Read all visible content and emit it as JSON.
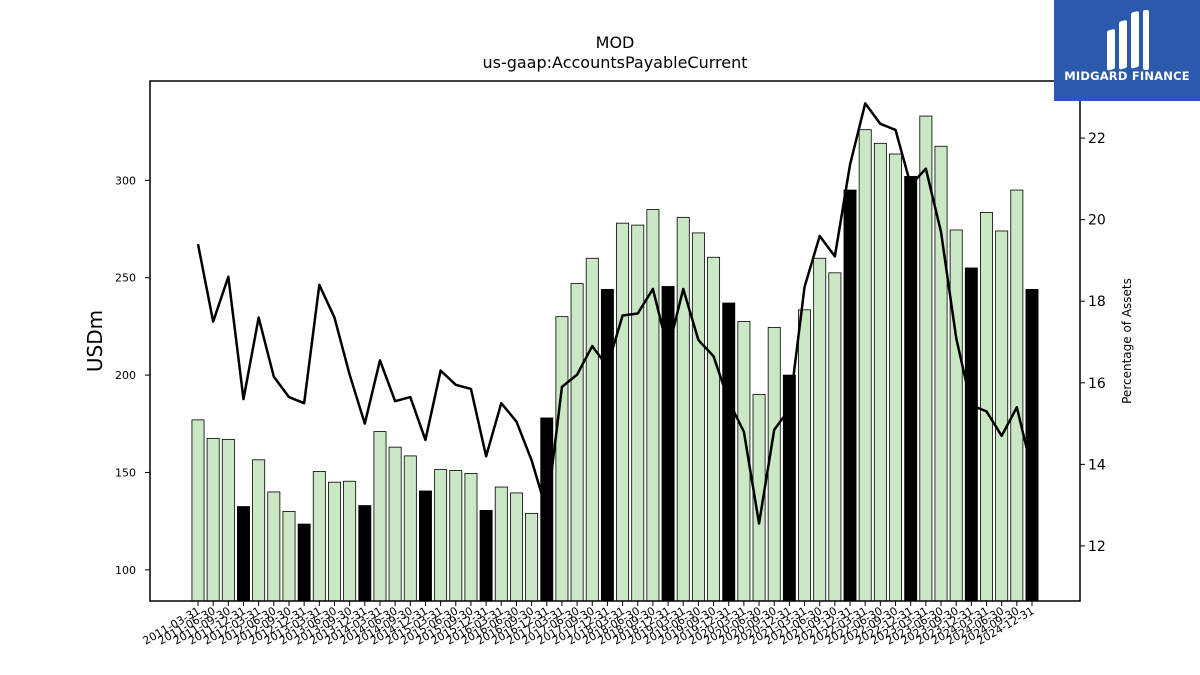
{
  "chart_data": {
    "type": "bar",
    "title": "MOD",
    "subtitle": "us-gaap:AccountsPayableCurrent",
    "ylabel": "USDm",
    "y2label": "Percentage of Assets",
    "ylim": [
      84,
      351
    ],
    "y2lim": [
      10.65,
      23.4
    ],
    "yticks": [
      100,
      150,
      200,
      250,
      300
    ],
    "y2ticks": [
      12,
      14,
      16,
      18,
      20,
      22
    ],
    "colors": {
      "bar": "#c9e8c3",
      "bar_highlight": "#000000",
      "edge": "#000000",
      "line": "#000000"
    },
    "categories": [
      "2011-03-31",
      "2011-06-30",
      "2011-09-30",
      "2011-12-31",
      "2012-03-31",
      "2012-06-30",
      "2012-09-30",
      "2012-12-31",
      "2013-03-31",
      "2013-06-30",
      "2013-09-30",
      "2013-12-31",
      "2014-03-31",
      "2014-06-30",
      "2014-09-30",
      "2014-12-31",
      "2015-03-31",
      "2015-06-30",
      "2015-09-30",
      "2015-12-31",
      "2016-03-31",
      "2016-06-30",
      "2016-09-30",
      "2016-12-31",
      "2017-03-31",
      "2017-06-30",
      "2017-09-30",
      "2017-12-31",
      "2018-03-31",
      "2018-06-30",
      "2018-09-30",
      "2018-12-31",
      "2019-03-31",
      "2019-06-30",
      "2019-09-30",
      "2019-12-31",
      "2020-03-31",
      "2020-06-30",
      "2020-09-30",
      "2020-12-31",
      "2021-03-31",
      "2021-06-30",
      "2021-09-30",
      "2021-12-31",
      "2022-03-31",
      "2022-06-30",
      "2022-09-30",
      "2022-12-31",
      "2023-03-31",
      "2023-06-30",
      "2023-09-30",
      "2023-12-31",
      "2024-03-31",
      "2024-06-30",
      "2024-09-30",
      "2024-12-31"
    ],
    "xtick_labels": [
      "2011-03-31",
      "2011-06-30",
      "2011-09-30",
      "2011-12-31",
      "2012-03-31",
      "2012-06-30",
      "2012-09-30",
      "2012-12-31",
      "2013-03-31",
      "2013-06-30",
      "2013-09-30",
      "2013-12-31",
      "2014-03-31",
      "2014-06-30",
      "2014-09-30",
      "2014-12-31",
      "2015-03-31",
      "2015-06-30",
      "2015-09-30",
      "2015-12-31",
      "2016-03-31",
      "2016-06-30",
      "2016-09-30",
      "2016-12-31",
      "2017-03-31",
      "2017-06-30",
      "2017-09-30",
      "2017-12-31",
      "2018-03-31",
      "2018-06-30",
      "2018-09-30",
      "2018-12-31",
      "2019-03-31",
      "2019-06-30",
      "2019-09-30",
      "2019-12-31",
      "2020-03-31",
      "2020-06-30",
      "2020-09-30",
      "2020-12-31",
      "2021-03-31",
      "2021-06-30",
      "2021-09-30",
      "2021-12-31",
      "2022-03-31",
      "2022-06-30",
      "2022-09-30",
      "2022-12-31",
      "2023-03-31",
      "2023-06-30",
      "2023-09-30",
      "2023-12-31",
      "2024-03-31",
      "2024-06-30",
      "2024-09-30",
      "2024-12-31"
    ],
    "values": [
      177,
      167.5,
      167,
      132.5,
      156.5,
      140,
      130,
      123.5,
      150.5,
      145,
      145.5,
      133,
      171,
      163,
      158.5,
      140.5,
      151.5,
      151,
      149.5,
      130.5,
      142.5,
      139.5,
      129,
      178,
      230,
      247,
      260,
      244,
      278,
      277,
      285,
      245.5,
      281,
      273,
      260.5,
      237,
      227.5,
      190,
      224.5,
      200,
      233.5,
      260,
      252.5,
      295,
      326,
      319,
      313.5,
      302,
      333,
      317.5,
      274.5,
      255,
      283.5,
      274,
      295,
      244
    ],
    "highlight": [
      false,
      false,
      false,
      true,
      false,
      false,
      false,
      true,
      false,
      false,
      false,
      true,
      false,
      false,
      false,
      true,
      false,
      false,
      false,
      true,
      false,
      false,
      false,
      true,
      false,
      false,
      false,
      true,
      false,
      false,
      false,
      true,
      false,
      false,
      false,
      true,
      false,
      false,
      false,
      true,
      false,
      false,
      false,
      true,
      false,
      false,
      false,
      true,
      false,
      false,
      false,
      true,
      false,
      false,
      false,
      true
    ],
    "pct_of_assets": [
      19.4,
      17.5,
      18.6,
      15.6,
      17.6,
      16.15,
      15.65,
      15.5,
      18.4,
      17.6,
      16.2,
      15.0,
      16.55,
      15.55,
      15.65,
      14.6,
      16.3,
      15.95,
      15.85,
      14.2,
      15.5,
      15.05,
      14.1,
      12.85,
      15.9,
      16.2,
      16.9,
      16.4,
      17.65,
      17.7,
      18.3,
      16.8,
      18.3,
      17.05,
      16.65,
      15.55,
      14.8,
      12.55,
      14.85,
      15.35,
      18.35,
      19.6,
      19.1,
      21.35,
      22.85,
      22.35,
      22.2,
      20.85,
      21.25,
      19.7,
      17.1,
      15.45,
      15.3,
      14.7,
      15.4,
      13.85
    ]
  },
  "logo": {
    "text": "MIDGARD FINANCE",
    "icon": "midgard-finance-logo-icon"
  }
}
